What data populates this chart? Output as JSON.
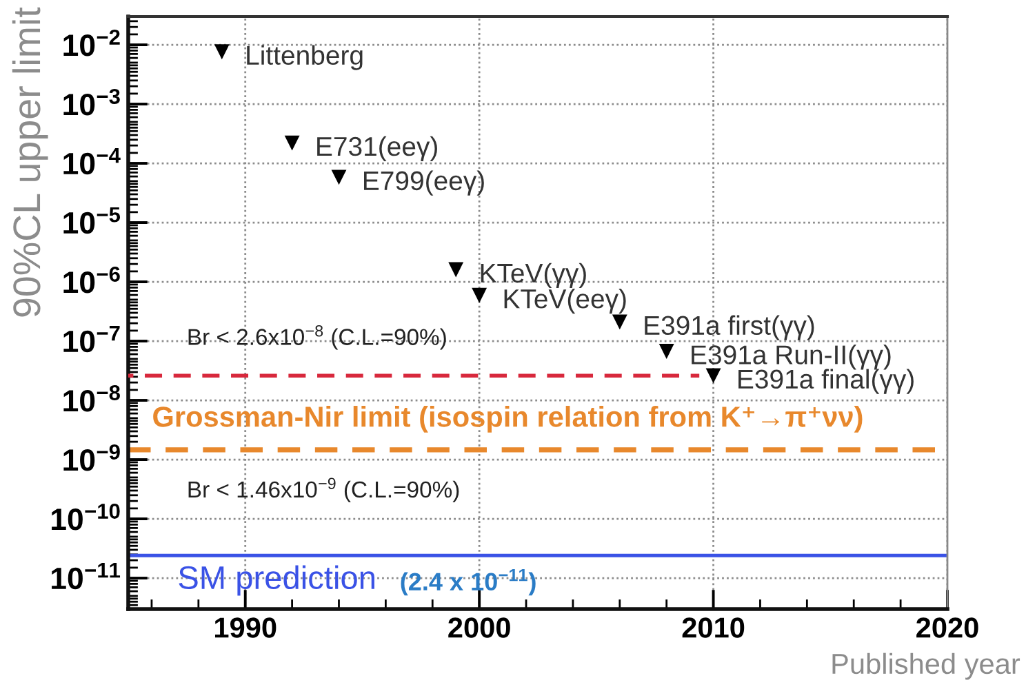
{
  "chart_data": {
    "type": "scatter",
    "xlabel": "Published year",
    "ylabel": "90%CL upper limit",
    "log": "y",
    "grid": true,
    "marker": "triangle",
    "xlim": [
      1985,
      2020
    ],
    "xticks": [
      1990,
      2000,
      2010,
      2020
    ],
    "ylim": [
      3e-12,
      0.03
    ],
    "yticks": [
      {
        "value": 0.01,
        "label": "10$^{−2}$"
      },
      {
        "value": 0.001,
        "label": "10$^{−3}$"
      },
      {
        "value": 0.0001,
        "label": "10$^{−4}$"
      },
      {
        "value": 1e-05,
        "label": "10$^{−5}$"
      },
      {
        "value": 1e-06,
        "label": "10$^{−6}$"
      },
      {
        "value": 1e-07,
        "label": "10$^{−7}$"
      },
      {
        "value": 1e-08,
        "label": "10$^{−8}$"
      },
      {
        "value": 1e-09,
        "label": "10$^{−9}$"
      },
      {
        "value": 1e-10,
        "label": "10$^{−10}$"
      },
      {
        "value": 1e-11,
        "label": "10$^{−11}$"
      }
    ],
    "series": [
      {
        "color": "#000000",
        "x": [
          1989,
          1992,
          1994,
          1999,
          2000,
          2006,
          2008,
          2010
        ],
        "values": [
          0.0076,
          0.00022,
          5.8e-05,
          1.6e-06,
          5.9e-07,
          2.1e-07,
          6.7e-08,
          2.6e-08
        ]
      },
      {
        "type": "line",
        "color": "#d8283c",
        "line_style": "dashed",
        "marker": "none",
        "x": [
          1985,
          2009.4
        ],
        "values": [
          2.6e-08,
          2.6e-08
        ]
      }
    ],
    "ref_lines": [
      {
        "axis": "y",
        "value": 1.46e-09,
        "label": "Grossman-Nir limit (isospin relation from K⁺→π⁺νν)",
        "color": "#e8882c",
        "line_style": "dashed"
      },
      {
        "axis": "y",
        "value": 2.4e-11,
        "label": "SM prediction",
        "color": "#3a52e6",
        "line_style": "solid"
      }
    ],
    "annotations": [
      {
        "text": "Littenberg",
        "x": 1989,
        "y": 0.0076
      },
      {
        "text": "E731(eeγ)",
        "x": 1992,
        "y": 0.00022
      },
      {
        "text": "E799(eeγ)",
        "x": 1994,
        "y": 5.8e-05
      },
      {
        "text": "KTeV(γγ)",
        "x": 1999,
        "y": 1.6e-06
      },
      {
        "text": "KTeV(eeγ)",
        "x": 2000,
        "y": 5.9e-07
      },
      {
        "text": "E391a first(γγ)",
        "x": 2006,
        "y": 2.1e-07
      },
      {
        "text": "E391a Run-II(γγ)",
        "x": 2008,
        "y": 6.7e-08
      },
      {
        "text": "E391a final(γγ)",
        "x": 2010,
        "y": 2.6e-08
      },
      {
        "text": "Br < 2.6x10$^{−8}$ (C.L.=90%)",
        "x": 1987.5,
        "y": 2.6e-08
      },
      {
        "text": "Br < 1.46x10$^{−9}$ (C.L.=90%)",
        "x": 1987.5,
        "y": 1.46e-09
      },
      {
        "text": "(2.4 x 10$^{−11}$)",
        "x": 1996.6,
        "y": 2.4e-11
      }
    ]
  }
}
